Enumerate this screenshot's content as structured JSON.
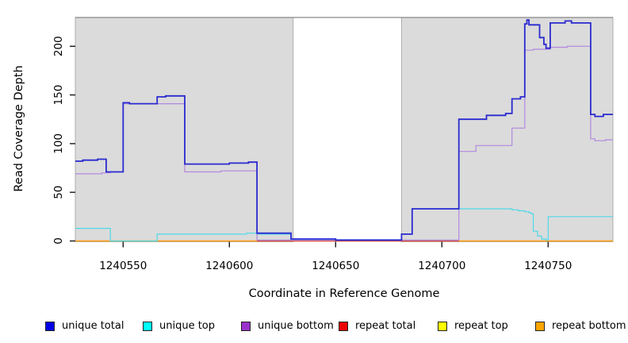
{
  "chart_data": {
    "type": "line",
    "style": "step-after",
    "title": "",
    "xlabel": "Coordinate in Reference Genome",
    "ylabel": "Read Coverage Depth",
    "xlim": [
      1240527.5,
      1240780.5
    ],
    "ylim": [
      0,
      229.6
    ],
    "x_ticks": [
      1240550,
      1240600,
      1240650,
      1240700,
      1240750
    ],
    "y_ticks": [
      0,
      50,
      100,
      150,
      200
    ],
    "grid": false,
    "legend_position": "bottom",
    "plot_bg": "#ffffff",
    "region_fill": "#dbdbdb",
    "region_stroke": "#adadad",
    "frame_color": "#6e6e6e",
    "tick_color": "#1a1a1a",
    "background_regions": [
      {
        "name": "covered-region-left",
        "x0": 1240527.5,
        "x1": 1240630,
        "fill": "#dbdbdb"
      },
      {
        "name": "covered-region-right",
        "x0": 1240681,
        "x1": 1240780.5,
        "fill": "#dbdbdb"
      }
    ],
    "series": [
      {
        "name": "repeat top",
        "color": "#ffff00",
        "width": 1.3,
        "points": [
          [
            1240527.5,
            0
          ],
          [
            1240780.5,
            0
          ]
        ]
      },
      {
        "name": "repeat bottom",
        "color": "#ff9c1e",
        "width": 1.5,
        "points": [
          [
            1240527.5,
            0
          ],
          [
            1240780.5,
            0
          ]
        ]
      },
      {
        "name": "repeat total",
        "color": "#d04858",
        "width": 1.2,
        "points": [
          [
            1240613,
            0
          ],
          [
            1240708,
            0
          ]
        ]
      },
      {
        "name": "unique top",
        "color": "#4ed9e9",
        "width": 1.2,
        "points": [
          [
            1240527.5,
            13
          ],
          [
            1240544,
            0
          ],
          [
            1240566,
            7
          ],
          [
            1240608,
            8
          ],
          [
            1240613,
            7
          ],
          [
            1240629,
            1
          ],
          [
            1240681,
            7
          ],
          [
            1240686,
            33
          ],
          [
            1240733,
            32
          ],
          [
            1240736,
            31
          ],
          [
            1240739,
            30
          ],
          [
            1240741,
            29
          ],
          [
            1240742,
            28
          ],
          [
            1240743,
            10
          ],
          [
            1240745,
            5
          ],
          [
            1240747,
            2
          ],
          [
            1240749,
            1
          ],
          [
            1240750,
            25
          ],
          [
            1240780.5,
            25
          ]
        ]
      },
      {
        "name": "unique bottom",
        "color": "#b288de",
        "width": 1.2,
        "points": [
          [
            1240527.5,
            69
          ],
          [
            1240540,
            70
          ],
          [
            1240544,
            71
          ],
          [
            1240550,
            141
          ],
          [
            1240579,
            71
          ],
          [
            1240596,
            72
          ],
          [
            1240613,
            1
          ],
          [
            1240708,
            92
          ],
          [
            1240716,
            98
          ],
          [
            1240733,
            116
          ],
          [
            1240739,
            196
          ],
          [
            1240743,
            197
          ],
          [
            1240751,
            199
          ],
          [
            1240759,
            200
          ],
          [
            1240770,
            105
          ],
          [
            1240772,
            103
          ],
          [
            1240777,
            104
          ],
          [
            1240780.5,
            104
          ]
        ]
      },
      {
        "name": "unique total",
        "color": "#2a2ad0",
        "width": 1.8,
        "points": [
          [
            1240527.5,
            82
          ],
          [
            1240531,
            83
          ],
          [
            1240538,
            84
          ],
          [
            1240542,
            71
          ],
          [
            1240550,
            142
          ],
          [
            1240553,
            141
          ],
          [
            1240566,
            148
          ],
          [
            1240570,
            149
          ],
          [
            1240579,
            79
          ],
          [
            1240600,
            80
          ],
          [
            1240609,
            81
          ],
          [
            1240613,
            8
          ],
          [
            1240629,
            2
          ],
          [
            1240650,
            1
          ],
          [
            1240681,
            7
          ],
          [
            1240686,
            33
          ],
          [
            1240708,
            125
          ],
          [
            1240721,
            129
          ],
          [
            1240730,
            131
          ],
          [
            1240733,
            146
          ],
          [
            1240737,
            148
          ],
          [
            1240739,
            223
          ],
          [
            1240740,
            227
          ],
          [
            1240741,
            222
          ],
          [
            1240746,
            209
          ],
          [
            1240748,
            202
          ],
          [
            1240749,
            198
          ],
          [
            1240751,
            224
          ],
          [
            1240758,
            226
          ],
          [
            1240761,
            224
          ],
          [
            1240770,
            130
          ],
          [
            1240772,
            128
          ],
          [
            1240776,
            130
          ],
          [
            1240780.5,
            130
          ]
        ]
      }
    ],
    "legend": [
      {
        "label": "unique total",
        "color": "#0000e6"
      },
      {
        "label": "unique top",
        "color": "#00ffff"
      },
      {
        "label": "unique bottom",
        "color": "#9932cc"
      },
      {
        "label": "repeat total",
        "color": "#ee0000"
      },
      {
        "label": "repeat top",
        "color": "#ffff00"
      },
      {
        "label": "repeat bottom",
        "color": "#ffa500"
      }
    ]
  }
}
